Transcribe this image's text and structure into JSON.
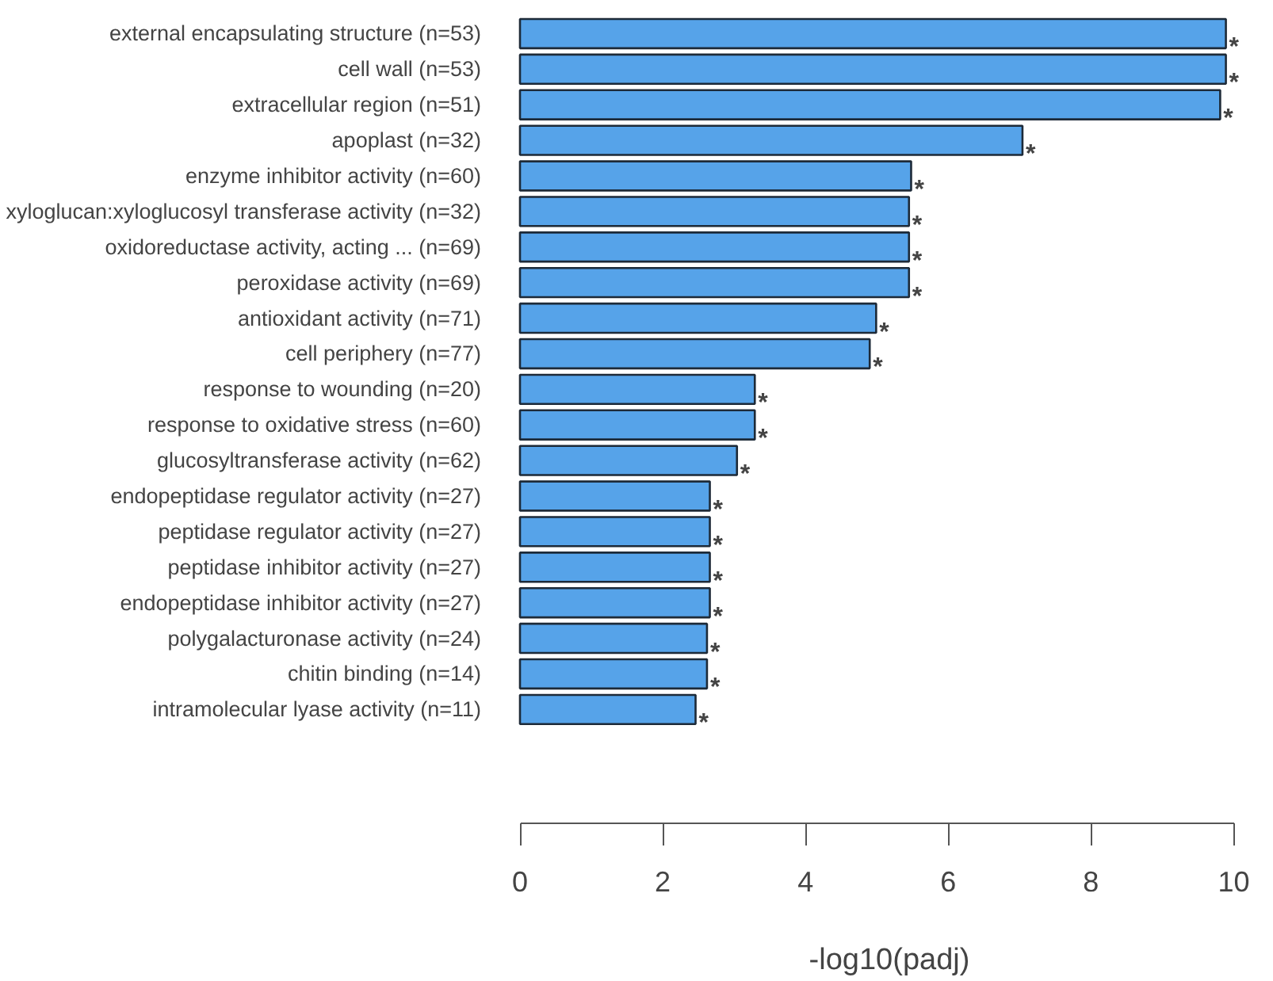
{
  "chart_data": {
    "type": "bar",
    "orientation": "horizontal",
    "xlabel": "-log10(padj)",
    "categories": [
      "external encapsulating structure (n=53)",
      "cell wall (n=53)",
      "extracellular region (n=51)",
      "apoplast (n=32)",
      "enzyme inhibitor activity (n=60)",
      "xyloglucan:xyloglucosyl transferase activity (n=32)",
      "oxidoreductase activity, acting ... (n=69)",
      "peroxidase activity (n=69)",
      "antioxidant activity (n=71)",
      "cell periphery (n=77)",
      "response to wounding (n=20)",
      "response to oxidative stress (n=60)",
      "glucosyltransferase activity (n=62)",
      "endopeptidase regulator activity (n=27)",
      "peptidase regulator activity (n=27)",
      "peptidase inhibitor activity (n=27)",
      "endopeptidase inhibitor activity (n=27)",
      "polygalacturonase activity (n=24)",
      "chitin binding (n=14)",
      "intramolecular lyase activity (n=11)"
    ],
    "values": [
      9.89,
      9.89,
      9.81,
      7.04,
      5.48,
      5.45,
      5.45,
      5.45,
      4.99,
      4.9,
      3.29,
      3.29,
      3.04,
      2.66,
      2.66,
      2.66,
      2.66,
      2.62,
      2.62,
      2.46
    ],
    "color": "#56a3e9",
    "xlim": [
      0,
      10
    ],
    "xticks": [
      0,
      2,
      4,
      6,
      8,
      10
    ],
    "grid": false,
    "annotations": [
      {
        "text": "*",
        "x": 9.89,
        "y": "external encapsulating structure (n=53)"
      },
      {
        "text": "*",
        "x": 9.89,
        "y": "cell wall (n=53)"
      },
      {
        "text": "*",
        "x": 9.81,
        "y": "extracellular region (n=51)"
      },
      {
        "text": "*",
        "x": 7.04,
        "y": "apoplast (n=32)"
      },
      {
        "text": "*",
        "x": 5.48,
        "y": "enzyme inhibitor activity (n=60)"
      },
      {
        "text": "*",
        "x": 5.45,
        "y": "xyloglucan:xyloglucosyl transferase activity (n=32)"
      },
      {
        "text": "*",
        "x": 5.45,
        "y": "oxidoreductase activity, acting ... (n=69)"
      },
      {
        "text": "*",
        "x": 5.45,
        "y": "peroxidase activity (n=69)"
      },
      {
        "text": "*",
        "x": 4.99,
        "y": "antioxidant activity (n=71)"
      },
      {
        "text": "*",
        "x": 4.9,
        "y": "cell periphery (n=77)"
      },
      {
        "text": "*",
        "x": 3.29,
        "y": "response to wounding (n=20)"
      },
      {
        "text": "*",
        "x": 3.29,
        "y": "response to oxidative stress (n=60)"
      },
      {
        "text": "*",
        "x": 3.04,
        "y": "glucosyltransferase activity (n=62)"
      },
      {
        "text": "*",
        "x": 2.66,
        "y": "endopeptidase regulator activity (n=27)"
      },
      {
        "text": "*",
        "x": 2.66,
        "y": "peptidase regulator activity (n=27)"
      },
      {
        "text": "*",
        "x": 2.66,
        "y": "peptidase inhibitor activity (n=27)"
      },
      {
        "text": "*",
        "x": 2.66,
        "y": "endopeptidase inhibitor activity (n=27)"
      },
      {
        "text": "*",
        "x": 2.62,
        "y": "polygalacturonase activity (n=24)"
      },
      {
        "text": "*",
        "x": 2.62,
        "y": "chitin binding (n=14)"
      },
      {
        "text": "*",
        "x": 2.46,
        "y": "intramolecular lyase activity (n=11)"
      }
    ]
  }
}
